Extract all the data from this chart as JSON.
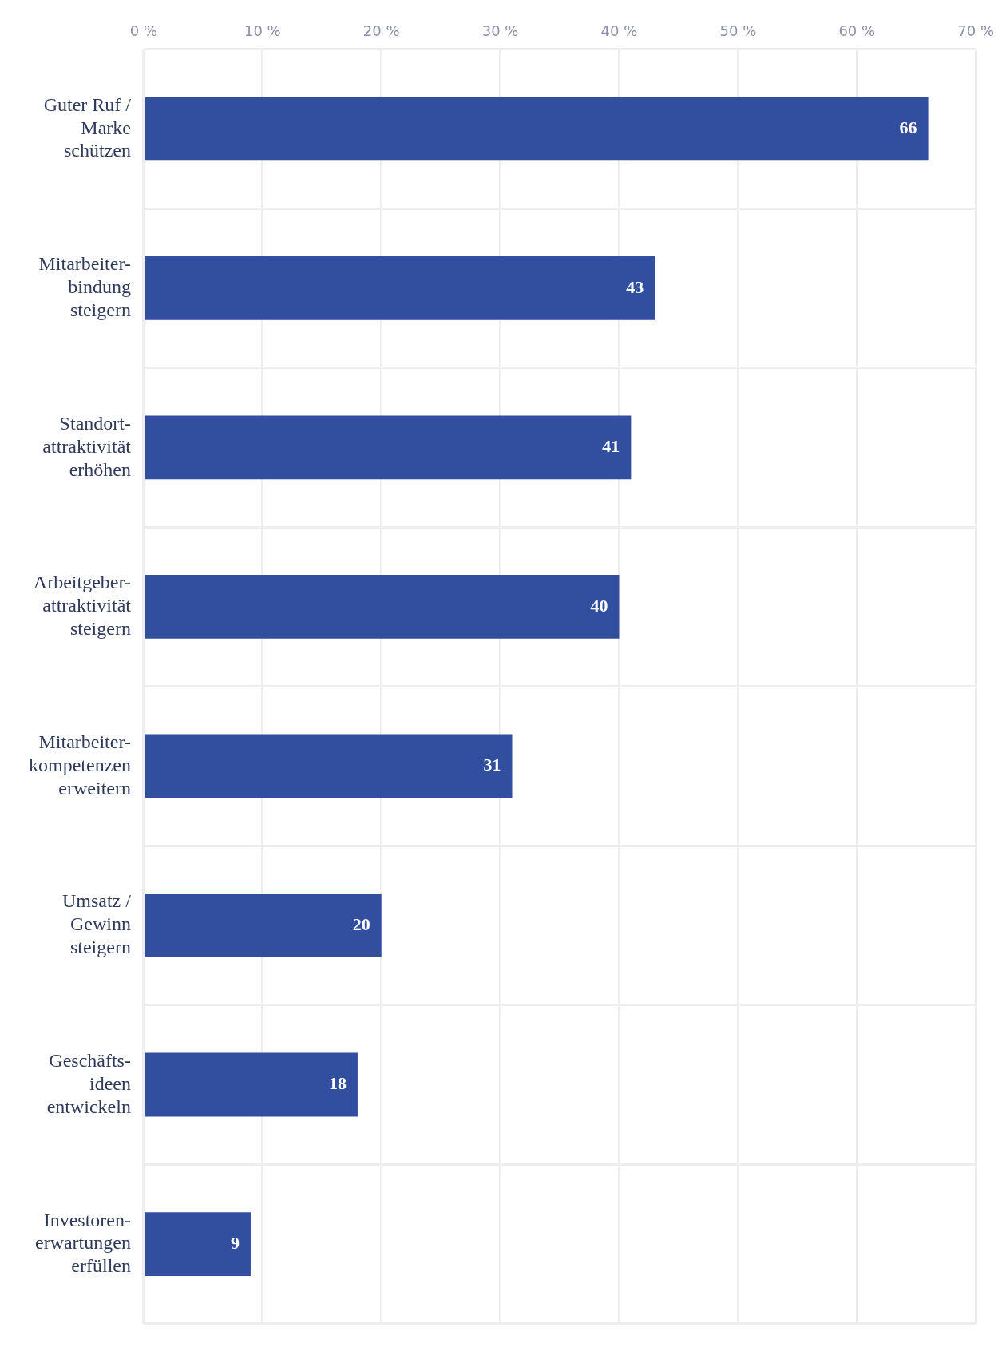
{
  "chart_data": {
    "type": "bar",
    "orientation": "horizontal",
    "categories": [
      "Guter Ruf /\nMarke\nschützen",
      "Mitarbeiter-\nbindung\nsteigern",
      "Standort-\nattraktivität\nerhöhen",
      "Arbeitgeber-\nattraktivität\nsteigern",
      "Mitarbeiter-\nkompetenzen\nerweitern",
      "Umsatz /\nGewinn\nsteigern",
      "Geschäfts-\nideen\nentwickeln",
      "Investoren-\nerwartungen\nerfüllen"
    ],
    "values": [
      66,
      43,
      41,
      40,
      31,
      20,
      18,
      9
    ],
    "color": "#324e9e",
    "data_labels": true,
    "xlim": [
      0,
      70
    ],
    "xticks": [
      {
        "value": 0,
        "label": "0 %"
      },
      {
        "value": 10,
        "label": "10 %"
      },
      {
        "value": 20,
        "label": "20 %"
      },
      {
        "value": 30,
        "label": "30 %"
      },
      {
        "value": 40,
        "label": "40 %"
      },
      {
        "value": 50,
        "label": "50 %"
      },
      {
        "value": 60,
        "label": "60 %"
      },
      {
        "value": 70,
        "label": "70 %"
      }
    ],
    "grid": true,
    "legend": false
  }
}
